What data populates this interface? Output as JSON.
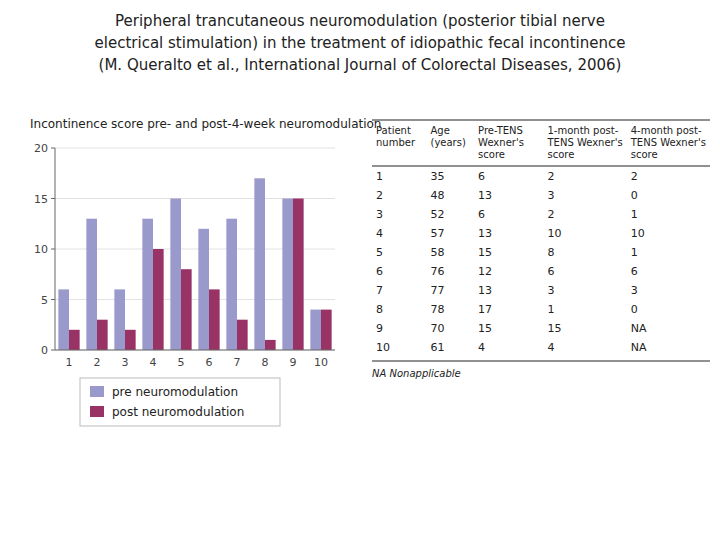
{
  "chart_data": [
    {
      "type": "bar",
      "title": [
        "Peripheral trancutaneous neuromodulation (posterior tibial nerve",
        "electrical stimulation) in the treatment of idiopathic fecal incontinence",
        "(M. Queralto et al., International Journal of Colorectal Diseases, 2006)"
      ],
      "subtitle": "Incontinence score pre- and post-4-week neuromodulation",
      "categories": [
        "1",
        "2",
        "3",
        "4",
        "5",
        "6",
        "7",
        "8",
        "9",
        "10"
      ],
      "series": [
        {
          "name": "pre neuromodulation",
          "color": "#9999cc",
          "values": [
            6,
            13,
            6,
            13,
            15,
            12,
            13,
            17,
            15,
            4
          ]
        },
        {
          "name": "post neuromodulation",
          "color": "#993366",
          "values": [
            2,
            3,
            2,
            10,
            8,
            6,
            3,
            1,
            15,
            4
          ]
        }
      ],
      "ylim": [
        0,
        20
      ],
      "yticks": [
        0,
        5,
        10,
        15,
        20
      ],
      "grid": true,
      "legend": "bottom"
    },
    {
      "type": "table",
      "columns": [
        "Patient\nnumber",
        "Age\n(years)",
        "Pre-TENS\nWexner's\nscore",
        "1-month post-\nTENS Wexner's\nscore",
        "4-month post-\nTENS Wexner's\nscore"
      ],
      "rows": [
        [
          "1",
          "35",
          "6",
          "2",
          "2"
        ],
        [
          "2",
          "48",
          "13",
          "3",
          "0"
        ],
        [
          "3",
          "52",
          "6",
          "2",
          "1"
        ],
        [
          "4",
          "57",
          "13",
          "10",
          "10"
        ],
        [
          "5",
          "58",
          "15",
          "8",
          "1"
        ],
        [
          "6",
          "76",
          "12",
          "6",
          "6"
        ],
        [
          "7",
          "77",
          "13",
          "3",
          "3"
        ],
        [
          "8",
          "78",
          "17",
          "1",
          "0"
        ],
        [
          "9",
          "70",
          "15",
          "15",
          "NA"
        ],
        [
          "10",
          "61",
          "4",
          "4",
          "NA"
        ]
      ],
      "footnote": "NA Nonapplicable"
    }
  ]
}
